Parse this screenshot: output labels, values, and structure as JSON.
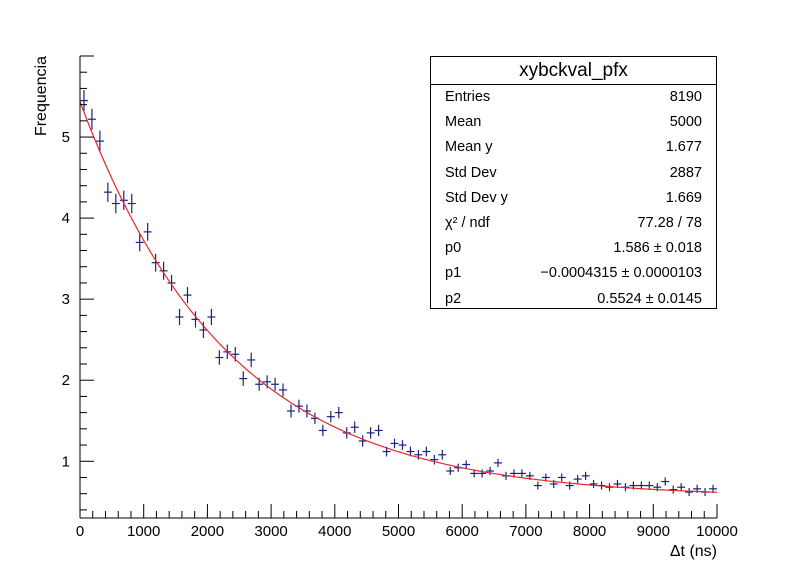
{
  "chart_data": {
    "type": "scatter",
    "title": "",
    "xlabel": "Δt (ns)",
    "ylabel": "Frequencia",
    "xlim": [
      0,
      10000
    ],
    "ylim": [
      0.3,
      6.0
    ],
    "x_ticks": [
      "0",
      "1000",
      "2000",
      "3000",
      "4000",
      "5000",
      "6000",
      "7000",
      "8000",
      "9000",
      "10000"
    ],
    "y_ticks": [
      "1",
      "2",
      "3",
      "4",
      "5"
    ],
    "grid": false,
    "colors": {
      "points": "#1a237e",
      "fit": "#e8262b",
      "axes": "#000000"
    },
    "bin_width": 125,
    "series": [
      {
        "kind": "data_with_errors",
        "x": [
          62.5,
          187.5,
          312.5,
          437.5,
          562.5,
          687.5,
          812.5,
          937.5,
          1062.5,
          1187.5,
          1312.5,
          1437.5,
          1562.5,
          1687.5,
          1812.5,
          1937.5,
          2062.5,
          2187.5,
          2312.5,
          2437.5,
          2562.5,
          2687.5,
          2812.5,
          2937.5,
          3062.5,
          3187.5,
          3312.5,
          3437.5,
          3562.5,
          3687.5,
          3812.5,
          3937.5,
          4062.5,
          4187.5,
          4312.5,
          4437.5,
          4562.5,
          4687.5,
          4812.5,
          4937.5,
          5062.5,
          5187.5,
          5312.5,
          5437.5,
          5562.5,
          5687.5,
          5812.5,
          5937.5,
          6062.5,
          6187.5,
          6312.5,
          6437.5,
          6562.5,
          6687.5,
          6812.5,
          6937.5,
          7062.5,
          7187.5,
          7312.5,
          7437.5,
          7562.5,
          7687.5,
          7812.5,
          7937.5,
          8062.5,
          8187.5,
          8312.5,
          8437.5,
          8562.5,
          8687.5,
          8812.5,
          8937.5,
          9062.5,
          9187.5,
          9312.5,
          9437.5,
          9562.5,
          9687.5,
          9812.5,
          9937.5
        ],
        "y": [
          5.45,
          5.22,
          4.95,
          4.32,
          4.18,
          4.22,
          4.18,
          3.7,
          3.83,
          3.45,
          3.35,
          3.2,
          2.78,
          3.05,
          2.75,
          2.62,
          2.78,
          2.28,
          2.35,
          2.32,
          2.02,
          2.25,
          1.95,
          1.98,
          1.95,
          1.88,
          1.62,
          1.68,
          1.62,
          1.53,
          1.38,
          1.55,
          1.6,
          1.35,
          1.42,
          1.25,
          1.35,
          1.38,
          1.12,
          1.22,
          1.2,
          1.12,
          1.08,
          1.12,
          1.02,
          1.08,
          0.88,
          0.92,
          0.96,
          0.85,
          0.85,
          0.88,
          0.98,
          0.82,
          0.85,
          0.85,
          0.82,
          0.7,
          0.8,
          0.72,
          0.8,
          0.7,
          0.78,
          0.82,
          0.72,
          0.7,
          0.68,
          0.72,
          0.68,
          0.7,
          0.7,
          0.7,
          0.68,
          0.75,
          0.65,
          0.68,
          0.62,
          0.66,
          0.62,
          0.66
        ],
        "yerr": [
          0.13,
          0.13,
          0.13,
          0.12,
          0.12,
          0.12,
          0.12,
          0.11,
          0.11,
          0.11,
          0.11,
          0.1,
          0.1,
          0.1,
          0.1,
          0.1,
          0.1,
          0.09,
          0.09,
          0.09,
          0.09,
          0.09,
          0.08,
          0.08,
          0.08,
          0.08,
          0.08,
          0.08,
          0.08,
          0.07,
          0.07,
          0.07,
          0.07,
          0.07,
          0.07,
          0.07,
          0.07,
          0.07,
          0.06,
          0.06,
          0.06,
          0.06,
          0.06,
          0.06,
          0.06,
          0.06,
          0.05,
          0.05,
          0.05,
          0.05,
          0.05,
          0.05,
          0.05,
          0.05,
          0.05,
          0.05,
          0.05,
          0.05,
          0.05,
          0.05,
          0.05,
          0.05,
          0.05,
          0.05,
          0.05,
          0.05,
          0.05,
          0.05,
          0.05,
          0.05,
          0.05,
          0.05,
          0.05,
          0.05,
          0.05,
          0.05,
          0.05,
          0.05,
          0.05,
          0.05
        ]
      },
      {
        "kind": "fit",
        "function": "exp(p0 + p1*x) + p2",
        "params": [
          1.586,
          -0.0004315,
          0.5524
        ]
      }
    ]
  },
  "stats_box": {
    "title": "xybckval_pfx",
    "rows": [
      {
        "key": "Entries",
        "value": "8190"
      },
      {
        "key": "Mean",
        "value": "5000"
      },
      {
        "key": "Mean y",
        "value": "1.677"
      },
      {
        "key": "Std Dev",
        "value": "2887"
      },
      {
        "key": "Std Dev y",
        "value": "1.669"
      },
      {
        "key": "χ² / ndf",
        "value": "77.28 / 78"
      },
      {
        "key": "p0",
        "value": "1.586 ± 0.018"
      },
      {
        "key": "p1",
        "value": "−0.0004315 ± 0.0000103"
      },
      {
        "key": "p2",
        "value": "0.5524 ± 0.0145"
      }
    ]
  }
}
